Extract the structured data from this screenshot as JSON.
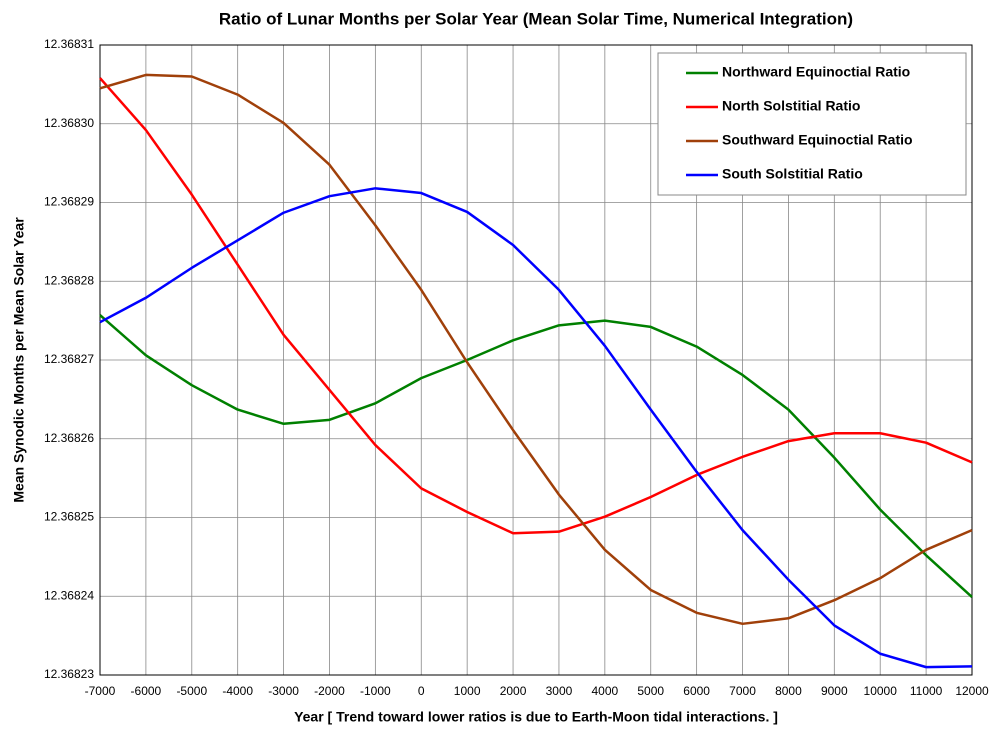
{
  "chart_data": {
    "type": "line",
    "title": "Ratio of Lunar Months per Solar Year (Mean Solar Time, Numerical Integration)",
    "xlabel": "Year [ Trend toward lower ratios is due to Earth-Moon tidal interactions. ]",
    "ylabel": "Mean Synodic Months per Mean Solar Year",
    "x": [
      -7000,
      -6000,
      -5000,
      -4000,
      -3000,
      -2000,
      -1000,
      0,
      1000,
      2000,
      3000,
      4000,
      5000,
      6000,
      7000,
      8000,
      9000,
      10000,
      11000,
      12000
    ],
    "series": [
      {
        "name": "Northward Equinoctial Ratio",
        "color": "#008000",
        "values": [
          12.3682757,
          12.3682706,
          12.3682668,
          12.3682637,
          12.3682619,
          12.3682624,
          12.3682645,
          12.3682677,
          12.36827,
          12.3682725,
          12.3682744,
          12.368275,
          12.3682742,
          12.3682717,
          12.3682681,
          12.3682637,
          12.3682576,
          12.368251,
          12.3682452,
          12.3682399
        ]
      },
      {
        "name": "North Solstitial Ratio",
        "color": "#ff0000",
        "values": [
          12.3683058,
          12.3682992,
          12.368291,
          12.3682821,
          12.3682732,
          12.3682662,
          12.3682592,
          12.3682537,
          12.3682507,
          12.368248,
          12.3682482,
          12.3682501,
          12.3682526,
          12.3682554,
          12.3682577,
          12.3682597,
          12.3682607,
          12.3682607,
          12.3682595,
          12.368257
        ]
      },
      {
        "name": "Southward Equinoctial Ratio",
        "color": "#a0400a",
        "values": [
          12.3683045,
          12.3683062,
          12.368306,
          12.3683037,
          12.3683001,
          12.3682948,
          12.3682871,
          12.3682789,
          12.3682697,
          12.3682611,
          12.3682529,
          12.3682459,
          12.3682408,
          12.3682379,
          12.3682365,
          12.3682372,
          12.3682395,
          12.3682423,
          12.3682459,
          12.3682484
        ]
      },
      {
        "name": "South Solstitial Ratio",
        "color": "#0000ff",
        "values": [
          12.3682748,
          12.3682779,
          12.3682817,
          12.3682852,
          12.3682887,
          12.3682908,
          12.3682918,
          12.3682912,
          12.3682888,
          12.3682846,
          12.3682789,
          12.3682718,
          12.3682637,
          12.3682558,
          12.3682484,
          12.3682421,
          12.3682363,
          12.3682327,
          12.368231,
          12.3682311
        ]
      }
    ],
    "xlim": [
      -7000,
      12000
    ],
    "xticks": [
      -7000,
      -6000,
      -5000,
      -4000,
      -3000,
      -2000,
      -1000,
      0,
      1000,
      2000,
      3000,
      4000,
      5000,
      6000,
      7000,
      8000,
      9000,
      10000,
      11000,
      12000
    ],
    "ylim": [
      12.36823,
      12.36831
    ],
    "yticks": [
      12.36823,
      12.36824,
      12.36825,
      12.36826,
      12.36827,
      12.36828,
      12.36829,
      {
        "value": 12.3683,
        "label": "12.36830"
      },
      12.36831
    ],
    "grid": true,
    "legend": "upper right"
  }
}
